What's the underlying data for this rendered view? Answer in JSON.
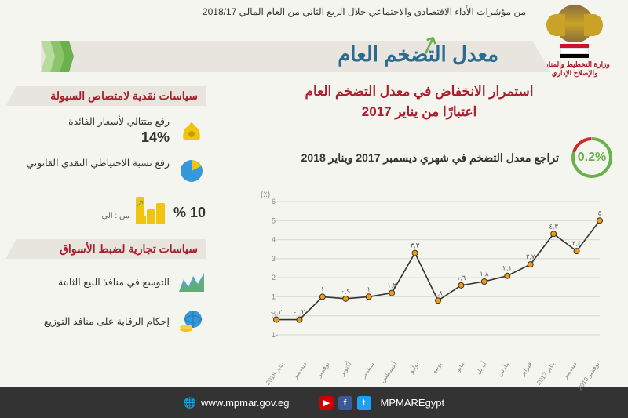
{
  "header": {
    "subtitle": "من مؤشرات الأداء الاقتصادي والاجتماعي خلال الربع الثاني من العام المالي 2018/17",
    "ministry": "وزارة التخطيط والمتابعة والإصلاح الإداري",
    "title": "معدل التضخم العام"
  },
  "right": {
    "heading": "استمرار الانخفاض في معدل التضخم العام\nاعتبارًا من يناير 2017",
    "ring_value": "0.2%",
    "ring_color": "#6ab04c",
    "ring_accent": "#cc2b2b",
    "stat_desc": "تراجع معدل التضخم في شهري ديسمبر 2017 ويناير 2018"
  },
  "left": {
    "section1": "سياسات نقدية لامتصاص السيولة",
    "p1_text": "رفع متتالي لأسعار الفائدة",
    "p1_value": "14%",
    "p2_text": "رفع نسبة الاحتياطي النقدي القانوني",
    "p2_value": "10 %",
    "from_to": "من : الى",
    "section2": "سياسات تجارية لضبط الأسواق",
    "p3_text": "التوسع في منافذ البيع الثابتة",
    "p4_text": "إحكام الرقابة على منافذ التوزيع"
  },
  "chart": {
    "ylabel": "(٪)",
    "ylim": [
      -1,
      6
    ],
    "yticks": [
      -1,
      0,
      1,
      2,
      3,
      4,
      5,
      6
    ],
    "months": [
      "نوفمبر 2016",
      "ديسمبر",
      "يناير 2017",
      "فبراير",
      "مارس",
      "أبريل",
      "مايو",
      "يونيو",
      "يوليو",
      "أغسطس",
      "سبتمبر",
      "أكتوبر",
      "نوفمبر",
      "ديسمبر",
      "يناير 2018"
    ],
    "values": [
      5.0,
      3.4,
      4.3,
      2.7,
      2.1,
      1.8,
      1.6,
      0.8,
      3.3,
      1.2,
      1.0,
      0.9,
      1.0,
      -0.2,
      -0.2
    ],
    "labels": [
      "٥",
      "٣,٤",
      "٤,٣",
      "٢,٧",
      "٢,١",
      "١,٨",
      "١,٦",
      "٠,٨",
      "٣,٣",
      "١,٢",
      "١",
      "٠,٩",
      "١",
      "٠,٢-",
      "٠,٢-"
    ],
    "line_color": "#333",
    "marker_fill": "#f39c12",
    "marker_stroke": "#333",
    "grid_color": "#d8d8d0",
    "bg": "#f5f5f0"
  },
  "footer": {
    "handle": "MPMAREgypt",
    "url": "www.mpmar.gov.eg",
    "socials": [
      {
        "name": "youtube",
        "bg": "#cc0000",
        "glyph": "▶"
      },
      {
        "name": "facebook",
        "bg": "#3b5998",
        "glyph": "f"
      },
      {
        "name": "twitter",
        "bg": "#1da1f2",
        "glyph": "t"
      }
    ]
  },
  "colors": {
    "banner_bg": "#e8e5de",
    "title_color": "#2b6b8f",
    "red": "#aa1e2d",
    "green": "#6ab04c"
  }
}
